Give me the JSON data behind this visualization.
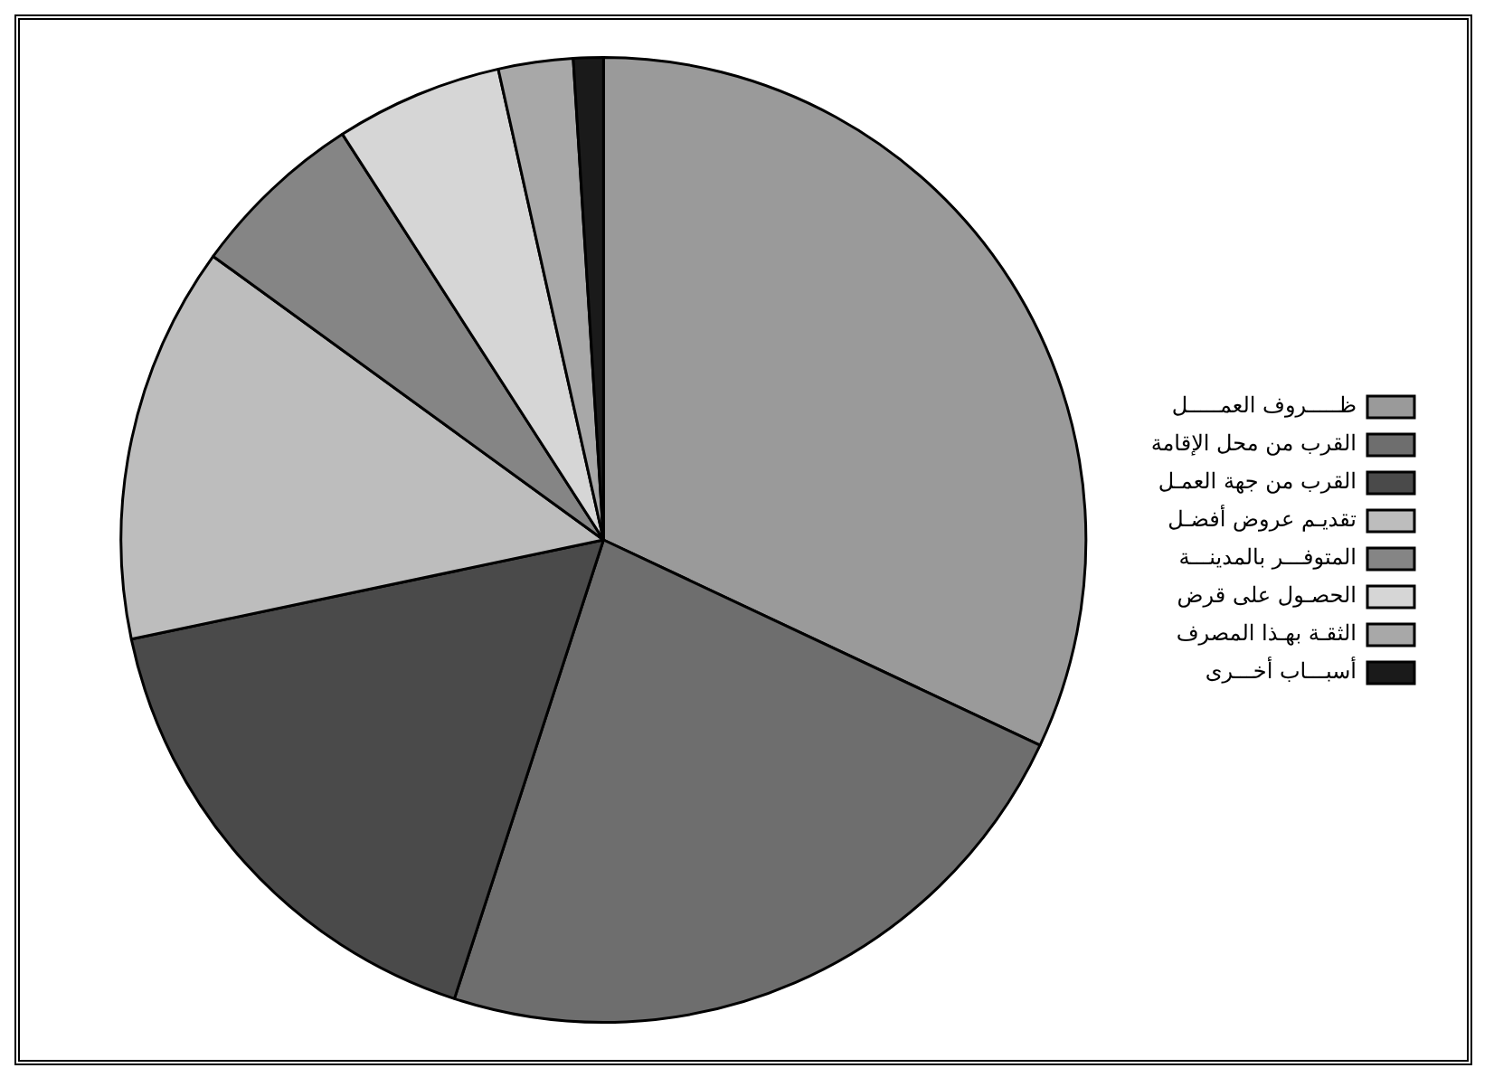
{
  "chart_data": {
    "type": "pie",
    "categories": [
      "ظـــــروف العمـــــل",
      "القرب من محل الإقامة",
      "القرب من جهة العمـل",
      "تقديـم عروض أفضـل",
      "المتوفـــر بالمدينـــة",
      "الحصـول على قرض",
      "الثقـة بهـذا المصرف",
      "أسبـــاب أخـــرى"
    ],
    "values": [
      32,
      23,
      16.7,
      13.3,
      5.9,
      5.6,
      2.5,
      1
    ],
    "colors": [
      "#9a9a9a",
      "#6e6e6e",
      "#4a4a4a",
      "#bdbdbd",
      "#858585",
      "#d6d6d6",
      "#a8a8a8",
      "#1a1a1a"
    ],
    "legend": "right"
  }
}
